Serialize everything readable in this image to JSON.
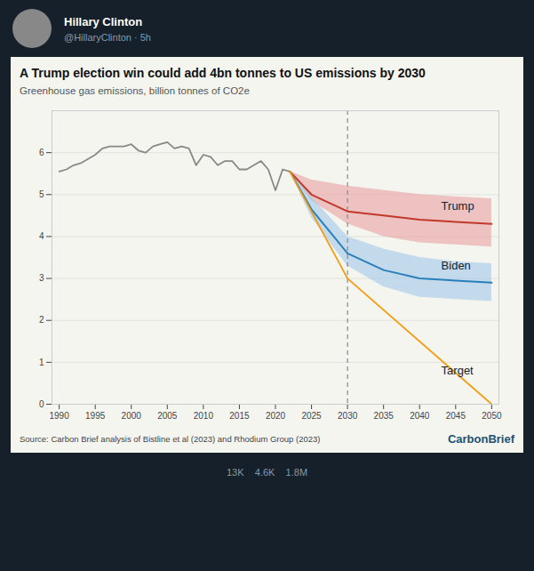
{
  "chart_data": {
    "type": "line",
    "title": "A Trump election win could add 4bn tonnes to US emissions by 2030",
    "subtitle": "Greenhouse gas emissions, billion tonnes of CO2e",
    "caption": "Source: Carbon Brief analysis of Bistline et al (2023) and Rhodium Group (2023)",
    "credit": "CarbonBrief",
    "header": [
      "Hillary Clinton",
      "@HillaryClinton · 5h"
    ],
    "footer": "13K    4.6K    1.8M",
    "xlim": [
      1989,
      2051
    ],
    "xticks": [
      1990,
      1995,
      2000,
      2005,
      2010,
      2015,
      2020,
      2025,
      2030,
      2035,
      2040,
      2045,
      2050
    ],
    "ylim": [
      0,
      7
    ],
    "yticks": [
      0,
      1,
      2,
      3,
      4,
      5,
      6
    ],
    "grid": "y",
    "legend": false,
    "series": [
      {
        "color": "#888888",
        "x": [
          1990,
          1991,
          1992,
          1993,
          1994,
          1995,
          1996,
          1997,
          1998,
          1999,
          2000,
          2001,
          2002,
          2003,
          2004,
          2005,
          2006,
          2007,
          2008,
          2009,
          2010,
          2011,
          2012,
          2013,
          2014,
          2015,
          2016,
          2017,
          2018,
          2019,
          2020,
          2021,
          2022
        ],
        "values": [
          5.55,
          5.6,
          5.7,
          5.75,
          5.85,
          5.95,
          6.1,
          6.15,
          6.15,
          6.15,
          6.2,
          6.05,
          6.0,
          6.15,
          6.2,
          6.25,
          6.1,
          6.15,
          6.1,
          5.7,
          5.95,
          5.9,
          5.7,
          5.8,
          5.8,
          5.6,
          5.6,
          5.7,
          5.8,
          5.6,
          5.1,
          5.6,
          5.55
        ]
      },
      {
        "color": "#c0392b",
        "band_color": "#e8a0a0",
        "x": [
          2022,
          2025,
          2030,
          2035,
          2040,
          2045,
          2050
        ],
        "values": [
          5.55,
          5.0,
          4.6,
          4.5,
          4.4,
          4.35,
          4.3
        ],
        "upper": [
          5.55,
          5.35,
          5.2,
          5.1,
          5.0,
          4.95,
          4.9
        ],
        "lower": [
          5.55,
          4.85,
          4.3,
          4.0,
          3.85,
          3.8,
          3.75
        ]
      },
      {
        "color": "#2980b9",
        "band_color": "#a0c8e8",
        "x": [
          2022,
          2025,
          2030,
          2035,
          2040,
          2045,
          2050
        ],
        "values": [
          5.55,
          4.65,
          3.6,
          3.2,
          3.0,
          2.95,
          2.9
        ],
        "upper": [
          5.55,
          4.95,
          4.0,
          3.7,
          3.5,
          3.4,
          3.35
        ],
        "lower": [
          5.55,
          4.45,
          3.3,
          2.8,
          2.55,
          2.5,
          2.45
        ]
      },
      {
        "color": "#f39c12",
        "x": [
          2022,
          2030,
          2050
        ],
        "values": [
          5.55,
          3.0,
          0.0
        ]
      }
    ],
    "vlines": [
      {
        "x": 2030,
        "color": "#888888",
        "line_style": "dashed"
      }
    ],
    "annotations": [
      {
        "text": "Trump",
        "x": 2043,
        "y": 4.72
      },
      {
        "text": "Biden",
        "x": 2043,
        "y": 3.3
      },
      {
        "text": "Target",
        "x": 2043,
        "y": 0.8
      }
    ]
  }
}
